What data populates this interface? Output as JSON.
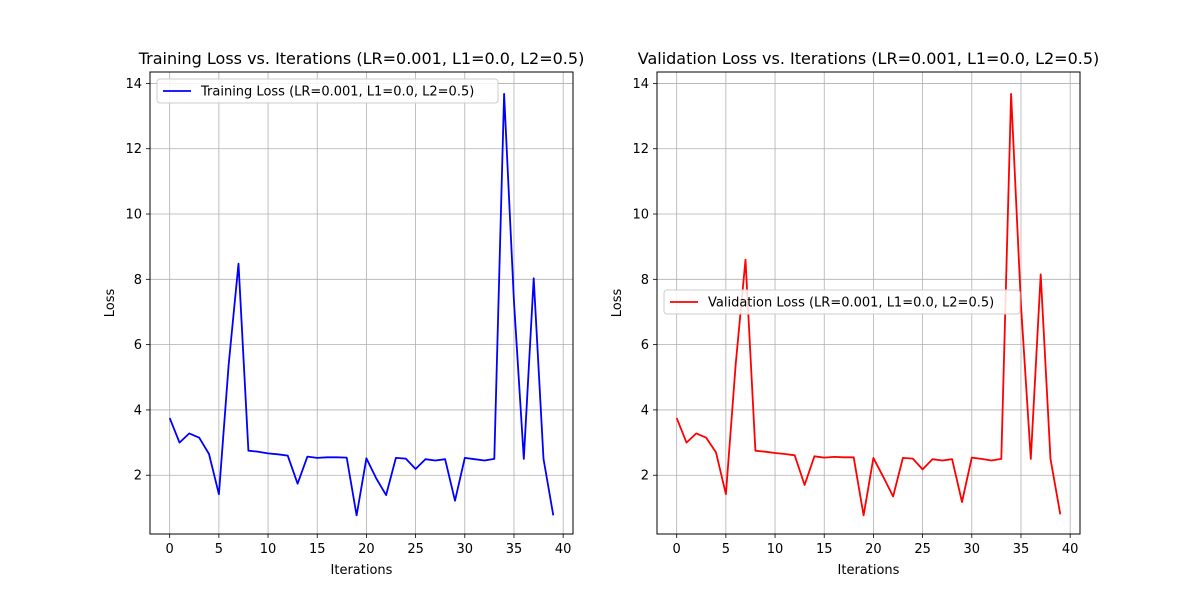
{
  "chart_data": [
    {
      "type": "line",
      "title": "Training Loss vs. Iterations (LR=0.001, L1=0.0, L2=0.5)",
      "xlabel": "Iterations",
      "ylabel": "Loss",
      "xlim": [
        -2,
        41
      ],
      "ylim": [
        0.2,
        14.35
      ],
      "xticks": [
        0,
        5,
        10,
        15,
        20,
        25,
        30,
        35,
        40
      ],
      "yticks": [
        2,
        4,
        6,
        8,
        10,
        12,
        14
      ],
      "grid": true,
      "legend_position": "top-left",
      "series": [
        {
          "name": "Training Loss (LR=0.001, L1=0.0, L2=0.5)",
          "color": "#0000ff",
          "x": [
            0,
            1,
            2,
            3,
            4,
            5,
            6,
            7,
            8,
            9,
            10,
            11,
            12,
            13,
            14,
            15,
            16,
            17,
            18,
            19,
            20,
            21,
            22,
            23,
            24,
            25,
            26,
            27,
            28,
            29,
            30,
            31,
            32,
            33,
            34,
            35,
            36,
            37,
            38,
            39
          ],
          "y": [
            3.75,
            3.0,
            3.28,
            3.15,
            2.65,
            1.42,
            5.4,
            8.48,
            2.75,
            2.72,
            2.67,
            2.64,
            2.6,
            1.74,
            2.57,
            2.53,
            2.55,
            2.55,
            2.54,
            0.77,
            2.52,
            1.9,
            1.39,
            2.53,
            2.51,
            2.19,
            2.49,
            2.45,
            2.49,
            1.22,
            2.53,
            2.49,
            2.45,
            2.5,
            13.68,
            7.3,
            2.5,
            8.03,
            2.5,
            0.77
          ]
        }
      ]
    },
    {
      "type": "line",
      "title": "Validation Loss vs. Iterations (LR=0.001, L1=0.0, L2=0.5)",
      "xlabel": "Iterations",
      "ylabel": "Loss",
      "xlim": [
        -2,
        41
      ],
      "ylim": [
        0.2,
        14.35
      ],
      "xticks": [
        0,
        5,
        10,
        15,
        20,
        25,
        30,
        35,
        40
      ],
      "yticks": [
        2,
        4,
        6,
        8,
        10,
        12,
        14
      ],
      "grid": true,
      "legend_position": "center-left",
      "series": [
        {
          "name": "Validation Loss (LR=0.001, L1=0.0, L2=0.5)",
          "color": "#ff0000",
          "x": [
            0,
            1,
            2,
            3,
            4,
            5,
            6,
            7,
            8,
            9,
            10,
            11,
            12,
            13,
            14,
            15,
            16,
            17,
            18,
            19,
            20,
            21,
            22,
            23,
            24,
            25,
            26,
            27,
            28,
            29,
            30,
            31,
            32,
            33,
            34,
            35,
            36,
            37,
            38,
            39
          ],
          "y": [
            3.75,
            3.0,
            3.28,
            3.15,
            2.7,
            1.42,
            5.4,
            8.6,
            2.75,
            2.72,
            2.68,
            2.65,
            2.61,
            1.7,
            2.58,
            2.54,
            2.56,
            2.55,
            2.55,
            0.77,
            2.53,
            1.95,
            1.35,
            2.53,
            2.51,
            2.18,
            2.49,
            2.45,
            2.49,
            1.18,
            2.54,
            2.5,
            2.45,
            2.5,
            13.68,
            7.2,
            2.5,
            8.15,
            2.5,
            0.8
          ]
        }
      ]
    }
  ]
}
